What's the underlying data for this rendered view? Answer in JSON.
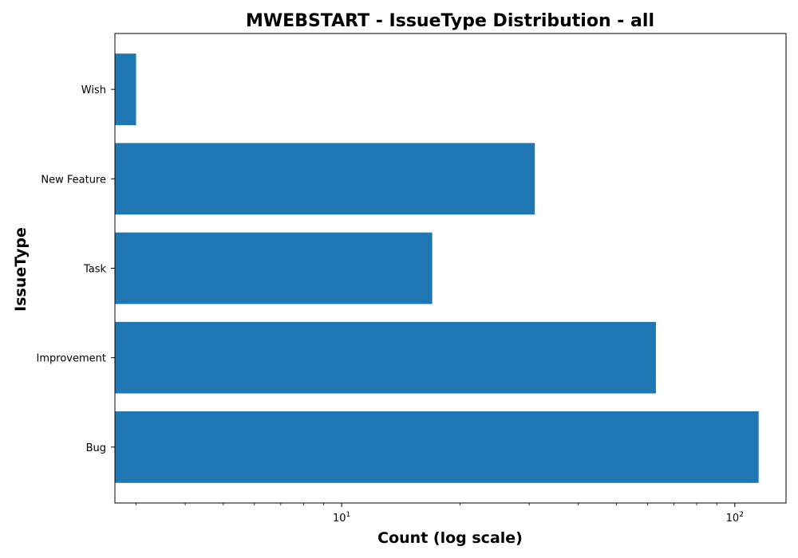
{
  "chart_data": {
    "type": "bar",
    "orientation": "horizontal",
    "title": "MWEBSTART - IssueType Distribution - all",
    "xlabel": "Count (log scale)",
    "ylabel": "IssueType",
    "x_scale": "log",
    "xlim": [
      2.65,
      135
    ],
    "categories": [
      "Bug",
      "Improvement",
      "Task",
      "New Feature",
      "Wish"
    ],
    "values": [
      115,
      63,
      17,
      31,
      3
    ],
    "bar_color": "#1f77b4",
    "x_ticks": [
      {
        "value": 10,
        "base": "10",
        "exp": "1"
      },
      {
        "value": 100,
        "base": "10",
        "exp": "2"
      }
    ],
    "grid": false,
    "legend": "none"
  }
}
